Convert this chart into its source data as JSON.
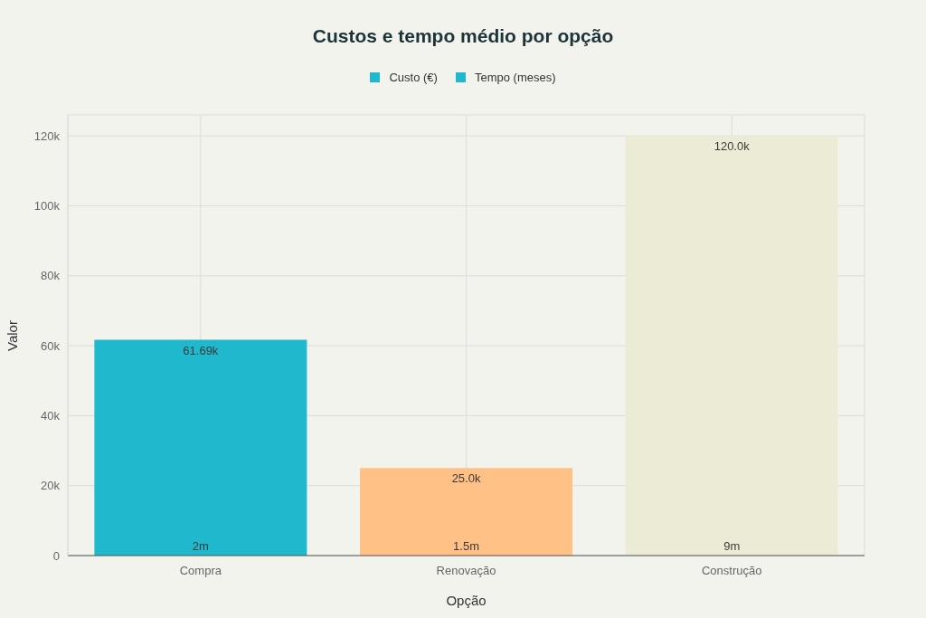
{
  "chart_data": {
    "type": "bar",
    "title": "Custos e tempo médio por opção",
    "xlabel": "Opção",
    "ylabel": "Valor",
    "categories": [
      "Compra",
      "Renovação",
      "Construção"
    ],
    "series": [
      {
        "name": "Custo (€)",
        "colors": [
          "#1fb8cd",
          "#ffc185",
          "#ecebd6"
        ],
        "values": [
          61690,
          25000,
          120000
        ],
        "value_labels": [
          "61.69k",
          "25.0k",
          "120.0k"
        ]
      },
      {
        "name": "Tempo (meses)",
        "colors": [
          "#1fb8cd",
          "#ffc185",
          "#ecebd6"
        ],
        "values": [
          2,
          1.5,
          9
        ],
        "value_labels": [
          "2m",
          "1.5m",
          "9m"
        ]
      }
    ],
    "ylim": [
      0,
      126000
    ],
    "yticks": [
      0,
      {
        "value": 20000,
        "label": "20k"
      },
      {
        "value": 40000,
        "label": "40k"
      },
      {
        "value": 60000,
        "label": "60k"
      },
      {
        "value": 80000,
        "label": "80k"
      },
      {
        "value": 100000,
        "label": "100k"
      },
      {
        "value": 120000,
        "label": "120k"
      }
    ],
    "grid": true,
    "legend": "top"
  }
}
